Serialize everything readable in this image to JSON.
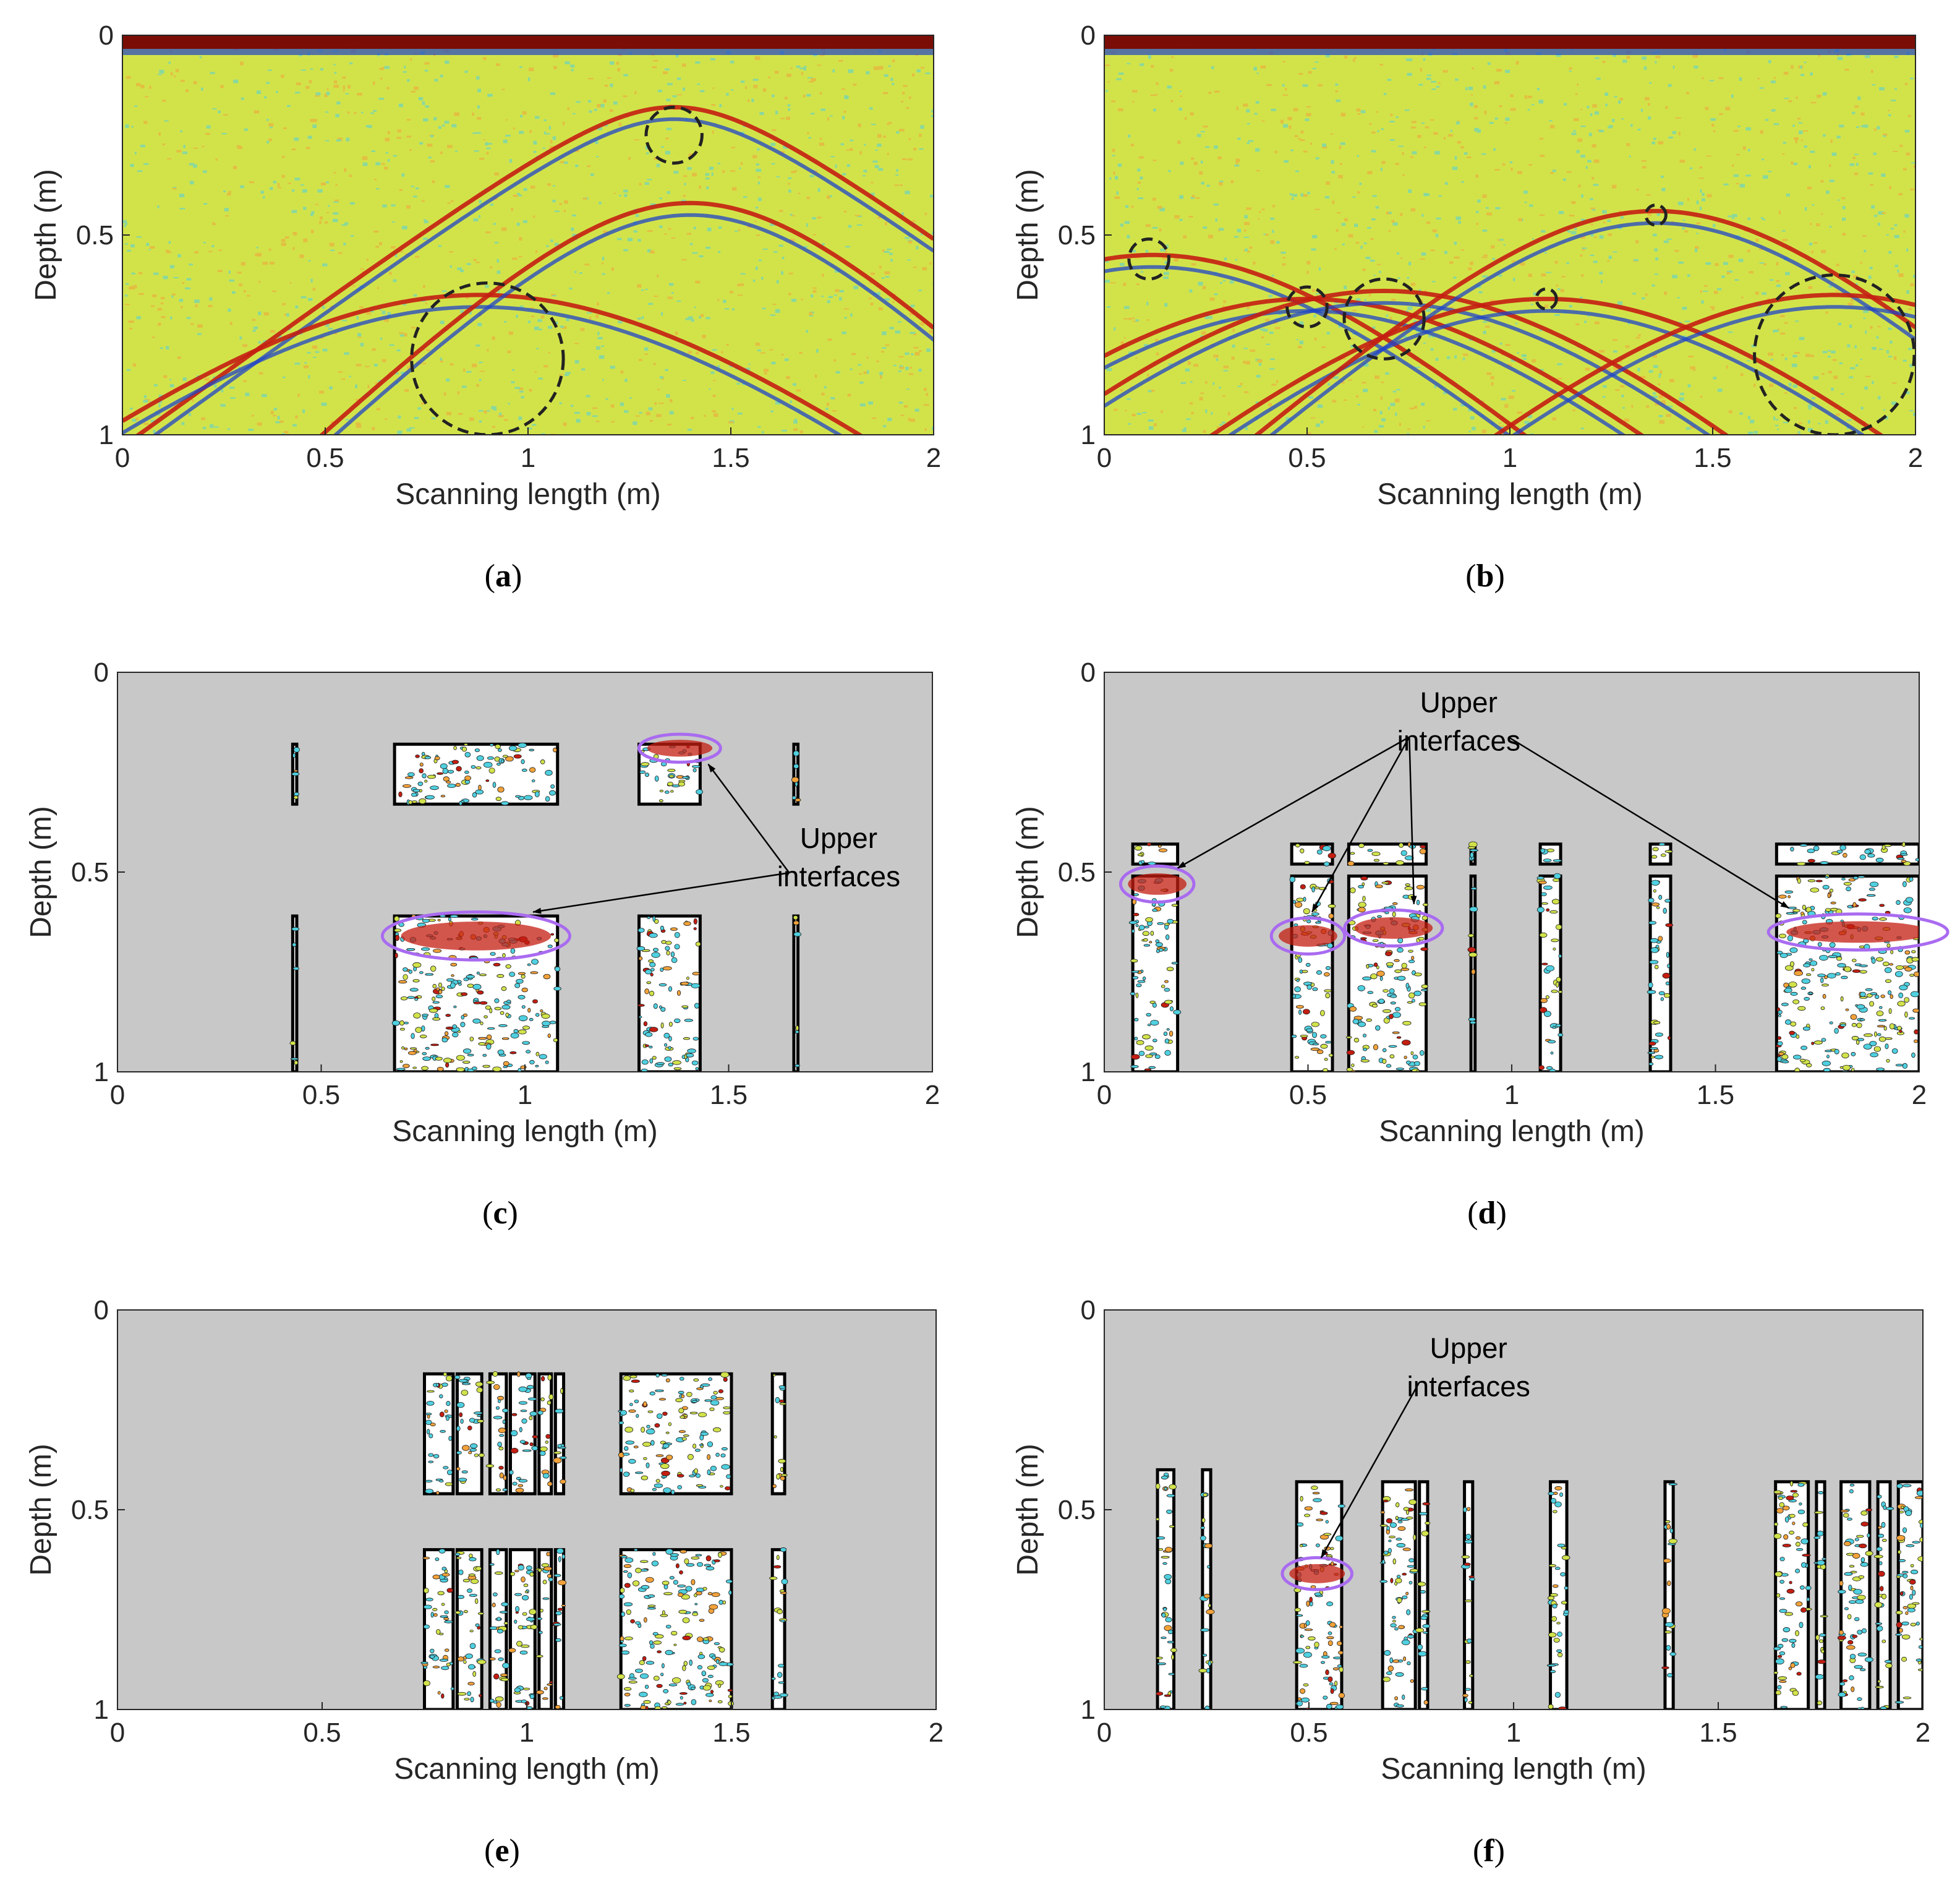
{
  "figure": {
    "colors": {
      "field": "#d2e34a",
      "field_speckle_cyan": "#4fd0e0",
      "field_speckle_orange": "#f2a23a",
      "reflection_red": "#c41e12",
      "reflection_blue": "#1f44c8",
      "topband_dark": "#7a0d06",
      "mask_gray": "#c8c8c8",
      "window_white": "#ffffff",
      "window_black": "#000000",
      "circle_dashed": "#222222",
      "ellipse_purple": "#a96bf0",
      "axis": "#262626"
    },
    "annotation_text": [
      "Upper",
      "interfaces"
    ]
  },
  "chart_data": [
    {
      "id": "a",
      "caption": "(a)",
      "type": "heatmap",
      "style": "radargram",
      "xlabel": "Scanning length (m)",
      "ylabel": "Depth (m)",
      "xlim": [
        0,
        2
      ],
      "ylim": [
        1,
        0
      ],
      "xticks": [
        "0",
        "0.5",
        "1",
        "1.5",
        "2"
      ],
      "yticks": [
        "0",
        "0.5",
        "1"
      ],
      "xtick_values": [
        0,
        0.5,
        1,
        1.5,
        2
      ],
      "ytick_values": [
        0,
        0.5,
        1
      ],
      "hyperbolas": [
        {
          "apex_x": 1.36,
          "apex_depth": 0.18,
          "k": 0.45
        },
        {
          "apex_x": 0.88,
          "apex_depth": 0.65,
          "k": 0.38
        },
        {
          "apex_x": 1.4,
          "apex_depth": 0.42,
          "k": 0.25
        }
      ],
      "dashed_circles": [
        {
          "x": 1.36,
          "depth": 0.25,
          "r": 0.07
        },
        {
          "x": 0.9,
          "depth": 0.81,
          "r": 0.19
        }
      ]
    },
    {
      "id": "b",
      "caption": "(b)",
      "type": "heatmap",
      "style": "radargram",
      "xlabel": "Scanning length (m)",
      "ylabel": "Depth (m)",
      "xlim": [
        0,
        2
      ],
      "ylim": [
        1,
        0
      ],
      "xticks": [
        "0",
        "0.5",
        "1",
        "1.5",
        "2"
      ],
      "yticks": [
        "0",
        "0.5",
        "1"
      ],
      "xtick_values": [
        0,
        0.5,
        1,
        1.5,
        2
      ],
      "ytick_values": [
        0,
        0.5,
        1
      ],
      "hyperbolas": [
        {
          "apex_x": 0.12,
          "apex_depth": 0.55,
          "k": 0.3
        },
        {
          "apex_x": 0.5,
          "apex_depth": 0.66,
          "k": 0.3
        },
        {
          "apex_x": 0.69,
          "apex_depth": 0.64,
          "k": 0.3
        },
        {
          "apex_x": 1.09,
          "apex_depth": 0.66,
          "k": 0.3
        },
        {
          "apex_x": 1.36,
          "apex_depth": 0.44,
          "k": 0.3
        },
        {
          "apex_x": 1.8,
          "apex_depth": 0.65,
          "k": 0.3
        }
      ],
      "dashed_circles": [
        {
          "x": 0.11,
          "depth": 0.56,
          "r": 0.05
        },
        {
          "x": 0.5,
          "depth": 0.68,
          "r": 0.05
        },
        {
          "x": 0.69,
          "depth": 0.71,
          "r": 0.1
        },
        {
          "x": 1.09,
          "depth": 0.66,
          "r": 0.025
        },
        {
          "x": 1.36,
          "depth": 0.45,
          "r": 0.025
        },
        {
          "x": 1.8,
          "depth": 0.8,
          "r": 0.2
        }
      ]
    },
    {
      "id": "c",
      "caption": "(c)",
      "type": "heatmap",
      "style": "masked",
      "xlabel": "Scanning length (m)",
      "ylabel": "Depth (m)",
      "xlim": [
        0,
        2
      ],
      "ylim": [
        1,
        0
      ],
      "xticks": [
        "0",
        "0.5",
        "1",
        "1.5",
        "2"
      ],
      "yticks": [
        "0",
        "0.5",
        "1"
      ],
      "xtick_values": [
        0,
        0.5,
        1,
        1.5,
        2
      ],
      "ytick_values": [
        0,
        0.5,
        1
      ],
      "windows": [
        {
          "x0": 0.43,
          "x1": 0.44,
          "d0": 0.18,
          "d1": 0.33
        },
        {
          "x0": 0.68,
          "x1": 1.08,
          "d0": 0.18,
          "d1": 0.33
        },
        {
          "x0": 1.28,
          "x1": 1.43,
          "d0": 0.18,
          "d1": 0.33
        },
        {
          "x0": 1.66,
          "x1": 1.67,
          "d0": 0.18,
          "d1": 0.33
        },
        {
          "x0": 0.43,
          "x1": 0.44,
          "d0": 0.61,
          "d1": 1.0
        },
        {
          "x0": 0.68,
          "x1": 1.08,
          "d0": 0.61,
          "d1": 1.0
        },
        {
          "x0": 1.28,
          "x1": 1.43,
          "d0": 0.61,
          "d1": 1.0
        },
        {
          "x0": 1.66,
          "x1": 1.67,
          "d0": 0.61,
          "d1": 1.0
        }
      ],
      "interface_ellipses": [
        {
          "x": 1.38,
          "depth": 0.19,
          "rx": 0.1,
          "rd": 0.035
        },
        {
          "x": 0.88,
          "depth": 0.66,
          "rx": 0.23,
          "rd": 0.06
        }
      ],
      "annotation": {
        "text_x": 1.77,
        "text_depth": 0.44,
        "arrows_to": [
          {
            "x": 1.45,
            "depth": 0.23
          },
          {
            "x": 1.02,
            "depth": 0.6
          }
        ]
      }
    },
    {
      "id": "d",
      "caption": "(d)",
      "type": "heatmap",
      "style": "masked",
      "xlabel": "Scanning length (m)",
      "ylabel": "Depth (m)",
      "xlim": [
        0,
        2
      ],
      "ylim": [
        1,
        0
      ],
      "xticks": [
        "0",
        "0.5",
        "1",
        "1.5",
        "2"
      ],
      "yticks": [
        "0",
        "0.5",
        "1"
      ],
      "xtick_values": [
        0,
        0.5,
        1,
        1.5,
        2
      ],
      "ytick_values": [
        0,
        0.5,
        1
      ],
      "windows": [
        {
          "x0": 0.07,
          "x1": 0.18,
          "d0": 0.43,
          "d1": 0.48
        },
        {
          "x0": 0.46,
          "x1": 0.56,
          "d0": 0.43,
          "d1": 0.48
        },
        {
          "x0": 0.6,
          "x1": 0.79,
          "d0": 0.43,
          "d1": 0.48
        },
        {
          "x0": 0.9,
          "x1": 0.91,
          "d0": 0.43,
          "d1": 0.48
        },
        {
          "x0": 1.07,
          "x1": 1.12,
          "d0": 0.43,
          "d1": 0.48
        },
        {
          "x0": 1.34,
          "x1": 1.39,
          "d0": 0.43,
          "d1": 0.48
        },
        {
          "x0": 1.65,
          "x1": 2.0,
          "d0": 0.43,
          "d1": 0.48
        },
        {
          "x0": 0.07,
          "x1": 0.18,
          "d0": 0.51,
          "d1": 1.0
        },
        {
          "x0": 0.46,
          "x1": 0.56,
          "d0": 0.51,
          "d1": 1.0
        },
        {
          "x0": 0.6,
          "x1": 0.79,
          "d0": 0.51,
          "d1": 1.0
        },
        {
          "x0": 0.9,
          "x1": 0.91,
          "d0": 0.51,
          "d1": 1.0
        },
        {
          "x0": 1.07,
          "x1": 1.12,
          "d0": 0.51,
          "d1": 1.0
        },
        {
          "x0": 1.34,
          "x1": 1.39,
          "d0": 0.51,
          "d1": 1.0
        },
        {
          "x0": 1.65,
          "x1": 2.0,
          "d0": 0.51,
          "d1": 1.0
        }
      ],
      "interface_ellipses": [
        {
          "x": 0.13,
          "depth": 0.53,
          "rx": 0.09,
          "rd": 0.045
        },
        {
          "x": 0.5,
          "depth": 0.66,
          "rx": 0.09,
          "rd": 0.045
        },
        {
          "x": 0.71,
          "depth": 0.64,
          "rx": 0.12,
          "rd": 0.045
        },
        {
          "x": 1.85,
          "depth": 0.65,
          "rx": 0.22,
          "rd": 0.045
        }
      ],
      "annotation": {
        "text_x": 0.87,
        "text_depth": 0.1,
        "arrows_to": [
          {
            "x": 0.18,
            "depth": 0.49
          },
          {
            "x": 0.51,
            "depth": 0.6
          },
          {
            "x": 0.76,
            "depth": 0.58
          },
          {
            "x": 1.68,
            "depth": 0.59
          }
        ]
      }
    },
    {
      "id": "e",
      "caption": "(e)",
      "type": "heatmap",
      "style": "masked",
      "xlabel": "Scanning length (m)",
      "ylabel": "Depth (m)",
      "xlim": [
        0,
        2
      ],
      "ylim": [
        1,
        0
      ],
      "xticks": [
        "0",
        "0.5",
        "1",
        "1.5",
        "2"
      ],
      "yticks": [
        "0",
        "0.5",
        "1"
      ],
      "xtick_values": [
        0,
        0.5,
        1,
        1.5,
        2
      ],
      "ytick_values": [
        0,
        0.5,
        1
      ],
      "windows": [
        {
          "x0": 0.75,
          "x1": 0.82,
          "d0": 0.16,
          "d1": 0.46
        },
        {
          "x0": 0.83,
          "x1": 0.89,
          "d0": 0.16,
          "d1": 0.46
        },
        {
          "x0": 0.91,
          "x1": 0.95,
          "d0": 0.16,
          "d1": 0.46
        },
        {
          "x0": 0.96,
          "x1": 1.02,
          "d0": 0.16,
          "d1": 0.46
        },
        {
          "x0": 1.03,
          "x1": 1.06,
          "d0": 0.16,
          "d1": 0.46
        },
        {
          "x0": 1.07,
          "x1": 1.09,
          "d0": 0.16,
          "d1": 0.46
        },
        {
          "x0": 1.23,
          "x1": 1.5,
          "d0": 0.16,
          "d1": 0.46
        },
        {
          "x0": 1.6,
          "x1": 1.63,
          "d0": 0.16,
          "d1": 0.46
        },
        {
          "x0": 0.75,
          "x1": 0.82,
          "d0": 0.6,
          "d1": 1.0
        },
        {
          "x0": 0.83,
          "x1": 0.89,
          "d0": 0.6,
          "d1": 1.0
        },
        {
          "x0": 0.91,
          "x1": 0.95,
          "d0": 0.6,
          "d1": 1.0
        },
        {
          "x0": 0.96,
          "x1": 1.02,
          "d0": 0.6,
          "d1": 1.0
        },
        {
          "x0": 1.03,
          "x1": 1.06,
          "d0": 0.6,
          "d1": 1.0
        },
        {
          "x0": 1.07,
          "x1": 1.09,
          "d0": 0.6,
          "d1": 1.0
        },
        {
          "x0": 1.23,
          "x1": 1.5,
          "d0": 0.6,
          "d1": 1.0
        },
        {
          "x0": 1.6,
          "x1": 1.63,
          "d0": 0.6,
          "d1": 1.0
        }
      ],
      "interface_ellipses": []
    },
    {
      "id": "f",
      "caption": "(f)",
      "type": "heatmap",
      "style": "masked",
      "xlabel": "Scanning length (m)",
      "ylabel": "Depth (m)",
      "xlim": [
        0,
        2
      ],
      "ylim": [
        1,
        0
      ],
      "xticks": [
        "0",
        "0.5",
        "1",
        "1.5",
        "2"
      ],
      "yticks": [
        "0",
        "0.5",
        "1"
      ],
      "xtick_values": [
        0,
        0.5,
        1,
        1.5,
        2
      ],
      "ytick_values": [
        0,
        0.5,
        1
      ],
      "windows": [
        {
          "x0": 0.13,
          "x1": 0.17,
          "d0": 0.4,
          "d1": 1.0
        },
        {
          "x0": 0.24,
          "x1": 0.26,
          "d0": 0.4,
          "d1": 1.0
        },
        {
          "x0": 0.47,
          "x1": 0.58,
          "d0": 0.43,
          "d1": 1.0
        },
        {
          "x0": 0.68,
          "x1": 0.76,
          "d0": 0.43,
          "d1": 1.0
        },
        {
          "x0": 0.77,
          "x1": 0.79,
          "d0": 0.43,
          "d1": 1.0
        },
        {
          "x0": 0.88,
          "x1": 0.9,
          "d0": 0.43,
          "d1": 1.0
        },
        {
          "x0": 1.09,
          "x1": 1.13,
          "d0": 0.43,
          "d1": 1.0
        },
        {
          "x0": 1.37,
          "x1": 1.39,
          "d0": 0.43,
          "d1": 1.0
        },
        {
          "x0": 1.64,
          "x1": 1.72,
          "d0": 0.43,
          "d1": 1.0
        },
        {
          "x0": 1.74,
          "x1": 1.76,
          "d0": 0.43,
          "d1": 1.0
        },
        {
          "x0": 1.8,
          "x1": 1.87,
          "d0": 0.43,
          "d1": 1.0
        },
        {
          "x0": 1.89,
          "x1": 1.92,
          "d0": 0.43,
          "d1": 1.0
        },
        {
          "x0": 1.94,
          "x1": 2.0,
          "d0": 0.43,
          "d1": 1.0
        }
      ],
      "interface_ellipses": [
        {
          "x": 0.52,
          "depth": 0.66,
          "rx": 0.085,
          "rd": 0.04
        }
      ],
      "annotation": {
        "text_x": 0.89,
        "text_depth": 0.12,
        "arrows_to": [
          {
            "x": 0.53,
            "depth": 0.62
          }
        ]
      }
    }
  ]
}
